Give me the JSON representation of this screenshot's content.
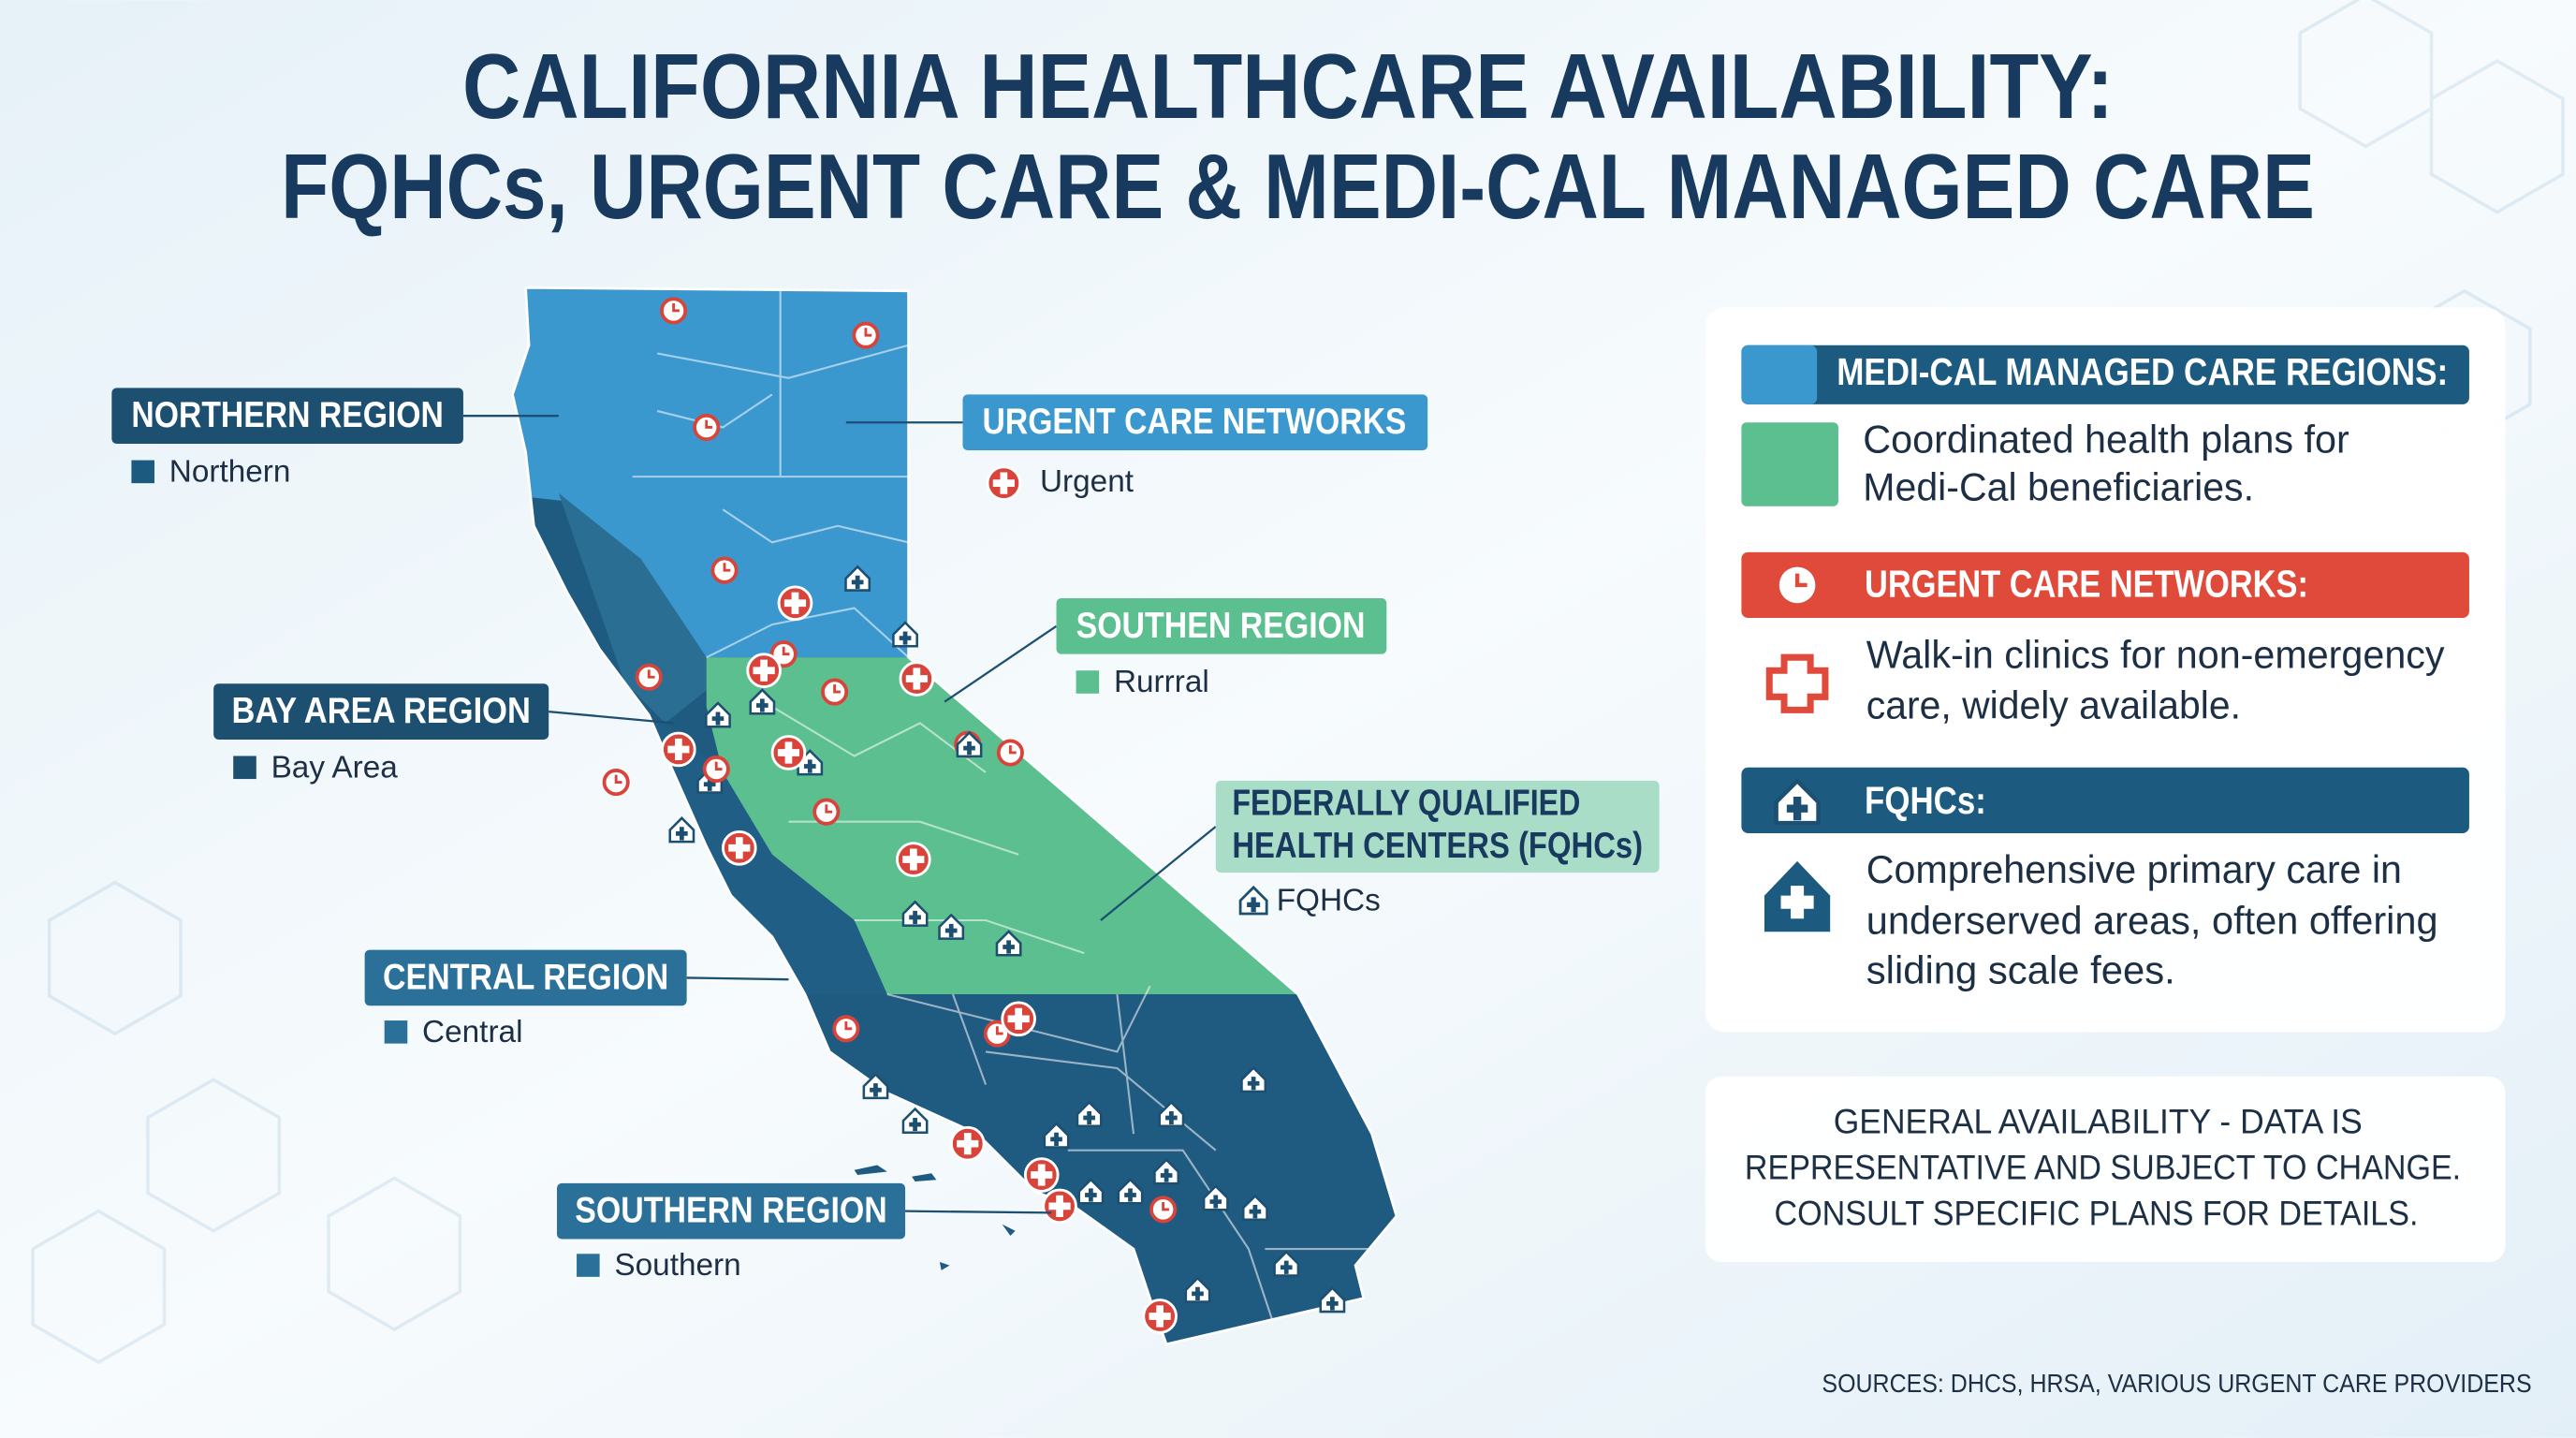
{
  "title": [
    "CALIFORNIA HEALTHCARE AVAILABILITY:",
    "FQHCs, URGENT CARE & MEDI-CAL MANAGED CARE"
  ],
  "map_labels": [
    {
      "title": "NORTHERN REGION",
      "legend": "Northern"
    },
    {
      "title": "URGENT CARE NETWORKS",
      "legend": "Urgent"
    },
    {
      "title": "SOUTHEN REGION",
      "legend": "Rurrral"
    },
    {
      "title": "BAY AREA REGION",
      "legend": "Bay Area"
    },
    {
      "title": [
        "FEDERALLY QUALIFIED",
        "HEALTH CENTERS (FQHCs)"
      ],
      "legend": "FQHCs"
    },
    {
      "title": "CENTRAL REGION",
      "legend": "Central"
    },
    {
      "title": "SOUTHERN REGION",
      "legend": "Southern"
    }
  ],
  "legend": [
    {
      "heading": "MEDI-CAL MANAGED CARE REGIONS:",
      "text": [
        "Coordinated health plans for",
        "Medi-Cal beneficiaries."
      ]
    },
    {
      "heading": "URGENT CARE NETWORKS:",
      "text": [
        "Walk-in clinics for non-emergency",
        "care, widely available."
      ]
    },
    {
      "heading": "FQHCs:",
      "text": [
        "Comprehensive primary care in",
        "underserved areas, often offering",
        "sliding scale fees."
      ]
    }
  ],
  "note": [
    "GENERAL AVAILABILITY - DATA IS",
    "REPRESENTATIVE AND SUBJECT TO CHANGE.",
    "CONSULT SPECIFIC PLANS FOR DETAILS."
  ],
  "sources": "SOURCES: DHCS, HRSA, VARIOUS URGENT CARE PROVIDERS"
}
